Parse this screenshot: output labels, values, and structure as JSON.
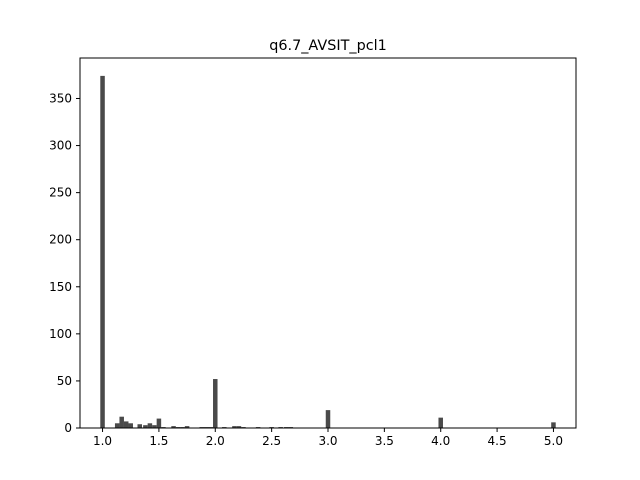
{
  "chart_data": {
    "type": "bar",
    "title": "q6.7_AVSIT_pcl1",
    "xlabel": "",
    "ylabel": "",
    "xlim": [
      0.8,
      5.2
    ],
    "ylim": [
      0,
      393
    ],
    "bar_width": 0.04,
    "bar_color": "#4a4a4a",
    "x_ticks": [
      {
        "value": 1.0,
        "label": "1.0"
      },
      {
        "value": 1.5,
        "label": "1.5"
      },
      {
        "value": 2.0,
        "label": "2.0"
      },
      {
        "value": 2.5,
        "label": "2.5"
      },
      {
        "value": 3.0,
        "label": "3.0"
      },
      {
        "value": 3.5,
        "label": "3.5"
      },
      {
        "value": 4.0,
        "label": "4.0"
      },
      {
        "value": 4.5,
        "label": "4.5"
      },
      {
        "value": 5.0,
        "label": "5.0"
      }
    ],
    "y_ticks": [
      {
        "value": 0,
        "label": "0"
      },
      {
        "value": 50,
        "label": "50"
      },
      {
        "value": 100,
        "label": "100"
      },
      {
        "value": 150,
        "label": "150"
      },
      {
        "value": 200,
        "label": "200"
      },
      {
        "value": 250,
        "label": "250"
      },
      {
        "value": 300,
        "label": "300"
      },
      {
        "value": 350,
        "label": "350"
      }
    ],
    "bins": [
      {
        "x": 1.0,
        "count": 374
      },
      {
        "x": 1.13,
        "count": 5
      },
      {
        "x": 1.17,
        "count": 12
      },
      {
        "x": 1.21,
        "count": 7
      },
      {
        "x": 1.25,
        "count": 5
      },
      {
        "x": 1.33,
        "count": 4
      },
      {
        "x": 1.38,
        "count": 3
      },
      {
        "x": 1.42,
        "count": 5
      },
      {
        "x": 1.46,
        "count": 3
      },
      {
        "x": 1.5,
        "count": 10
      },
      {
        "x": 1.54,
        "count": 1
      },
      {
        "x": 1.63,
        "count": 2
      },
      {
        "x": 1.67,
        "count": 1
      },
      {
        "x": 1.71,
        "count": 1
      },
      {
        "x": 1.75,
        "count": 2
      },
      {
        "x": 1.88,
        "count": 1
      },
      {
        "x": 1.92,
        "count": 1
      },
      {
        "x": 1.96,
        "count": 1
      },
      {
        "x": 2.0,
        "count": 52
      },
      {
        "x": 2.08,
        "count": 1
      },
      {
        "x": 2.17,
        "count": 2
      },
      {
        "x": 2.21,
        "count": 2
      },
      {
        "x": 2.25,
        "count": 1
      },
      {
        "x": 2.38,
        "count": 1
      },
      {
        "x": 2.5,
        "count": 1
      },
      {
        "x": 2.58,
        "count": 1
      },
      {
        "x": 2.63,
        "count": 1
      },
      {
        "x": 2.67,
        "count": 1
      },
      {
        "x": 3.0,
        "count": 19
      },
      {
        "x": 4.0,
        "count": 11
      },
      {
        "x": 5.0,
        "count": 6
      }
    ]
  }
}
